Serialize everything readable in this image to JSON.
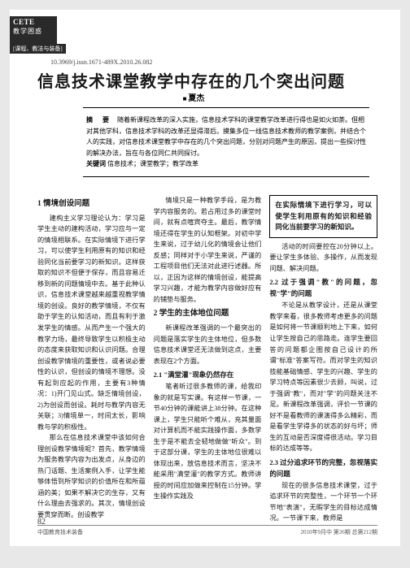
{
  "badge": {
    "en": "CETE",
    "cn": "教学困惑",
    "sub": "[课程、教法与装备]"
  },
  "doi": "10.3969/j.issn.1671-489X.2010.26.082",
  "title": "信息技术课堂教学中存在的几个突出问题",
  "author": "夏杰",
  "abstract": {
    "label": "摘　要",
    "text": "随着新课程改革的深入实施，信息技术学科的课堂教学改革进行得也是如火如荼。但相对其他学科，信息技术学科的改革还显得滞后。摸集多位一线信息技术教师的教学案例，并结合个人的实践，对信息技术课堂教学中存在的几个突出问题，分别对问题产生的原因，提出一些探讨性的解决办法，旨在与各位同仁共同探讨。",
    "kw_label": "关键词",
    "kw": "信息技术；课堂教学；教学改革"
  },
  "sections": {
    "s1h": "1 情境创设问题",
    "s1p1": "建构主义学习理论认为：学习是学生主动的建构活动，学习应与一定的情境相联系。在实际情境下进行学习，可以使学生利用原有的知识和经验同化当前要学习的新知识。这样获取的知识不但便于保存，而且容易迁移到新的问题情境中去。基于此种认识，信息技术课堂越来越重视教学情境的创设。良好的教学情境，不仅有助于学生的认知活动，而且有利于激发学生的情感。从而产生一个强大的教学力场，最终导致学生以积极主动的态度来获取知识和认识问题。合理创设教学情境的重要性，或者说必要性的认识，但创设的情境不理想。没有起到应起的作用，主要有3种情况：1)开门见山式。缺乏情境创设，2)为创设而创设。耗时与教学内容无关联；3)情境单一，时间太长，影响教与学的积极性。",
    "s1p2": "那么在信息技术课堂中该如何合理创设教学情境呢？首先，教学情境为服务教学内容为出发点，从身边的热门话题、生活案例入手，让学生能够体悟到所学知识的价值所在和所蕴涵的美；如果不解决它的生存，又有什么理由去强求的。其次，情境创设要贯穿而断。创设教学",
    "s1p3": "情境只是一种教学手段，是为教学内容服务的。若占用过多的课堂时间，就有点喧宾夺主。最后，教学情境还得在学生的认知框架。对初中学生来说，过于幼儿化的情境会让他们反感；同样对于小学生来说，严谨的工程项目他们无法对此进行述器。所以，正因为这样的情境创设，能提高学习兴趣，才能为教学内容做好应有的铺垫与服务。",
    "s2h": "2 学生的主体地位问题",
    "s2p1": "新课程改革强调的一个最突出的问题是落实学生的主体地位，但多数信息技术课堂还无法做到这点，主要表现在2个方面。",
    "s21h": "2.1 \"满堂灌\"现象仍然存在",
    "s21p": "笔者听过很多教师的课，给我印象的就是写实课。有这样一节课，一节40分钟的课能讲上38分钟。在这种课上，学生只能听个难从，充其量面对计算机而不能实践操作面，多数学生于是不能去全韧地做做\"听众\"。到于这部分课，学生的主体地位很难以体现出来，放信息技术而言，坚决不能采用\"满堂灌\"的教学方式。教师讲授的时间应加做来控制在15分钟。学生操作实践及",
    "s21p2": "活动的时间要控在20分钟以上。要让学生多体验、多操作，从而发现问题、解决问题。",
    "s22h": "2.2 过于强调\"教\"的问题，忽视\"学\"的问题",
    "s22p": "不论是从教学设计，还是从课堂教学来看，很多教师考虑更多的问题是如何将一节课顺利地上下来，如何让学生按自己的思路走。连学生要回答的问题都企图按自己设计的所谓\"标准\"答案写符。而对学生的知识技能基础情感、学生的兴趣、学生的学习特点等因素很少去顾，叫说，过于强调\"教\"，而对\"学\"的问题关注不足。新课程改革强调，评价一节课的好不是看教师的课演得多么精彩，而是看学生学得多的状态的好与坏；师生的互动是否深度得很活动。学习目标的达成等等。",
    "callout": "在实际情境下进行学习，可以使学生利用原有的知识和经验同化当前要学习的新知识。",
    "s23h": "2.3 过分追求环节的完整，忽视落实的问题",
    "s23p": "现在的很多信息技术课堂，过于追求环节的完整性，一个环节一个环节地\"表演\"，无暇学生的目标达成情况。一节课下来，教师是"
  },
  "footer": {
    "page": "82",
    "left": "中国教育技术装备",
    "right": "2010年9月中 第26期 总第212期"
  }
}
